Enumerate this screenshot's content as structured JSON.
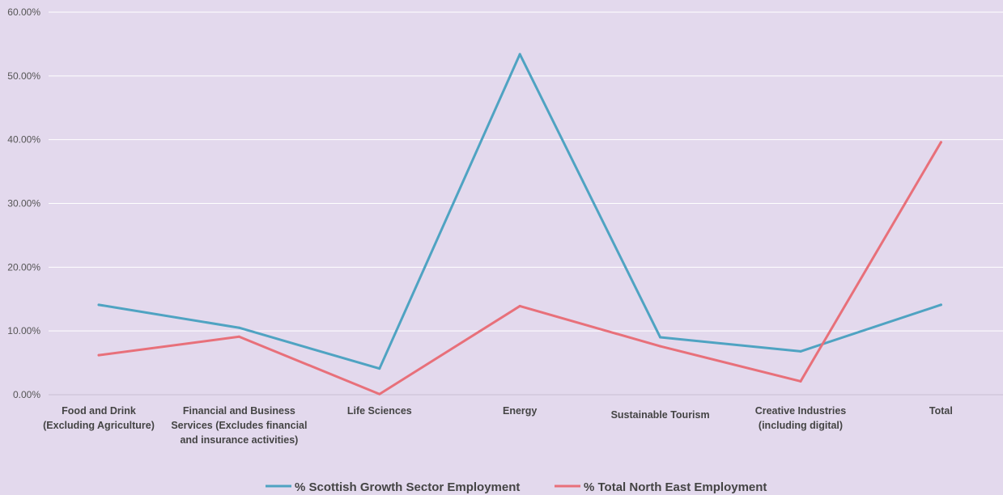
{
  "chart_data": {
    "type": "line",
    "title": "",
    "xlabel": "",
    "ylabel": "",
    "categories": [
      [
        "Food and Drink",
        "(Excluding Agriculture)"
      ],
      [
        "Financial and Business",
        "Services (Excludes financial",
        "and insurance activities)"
      ],
      [
        "Life Sciences"
      ],
      [
        "Energy"
      ],
      [
        "Sustainable Tourism"
      ],
      [
        "Creative Industries",
        "(including digital)"
      ],
      [
        "Total"
      ]
    ],
    "series": [
      {
        "name": "% Scottish Growth Sector Employment",
        "color": "#4fa3c2",
        "values": [
          14.1,
          10.5,
          4.1,
          53.4,
          9.0,
          6.8,
          14.1
        ]
      },
      {
        "name": "% Total North East Employment",
        "color": "#e8707a",
        "values": [
          6.2,
          9.1,
          0.1,
          13.9,
          7.6,
          2.1,
          39.6
        ]
      }
    ],
    "ylim": [
      0,
      60
    ],
    "yticks": [
      "0.00%",
      "10.00%",
      "20.00%",
      "30.00%",
      "40.00%",
      "50.00%",
      "60.00%"
    ],
    "grid": true,
    "legend_position": "bottom-center"
  }
}
